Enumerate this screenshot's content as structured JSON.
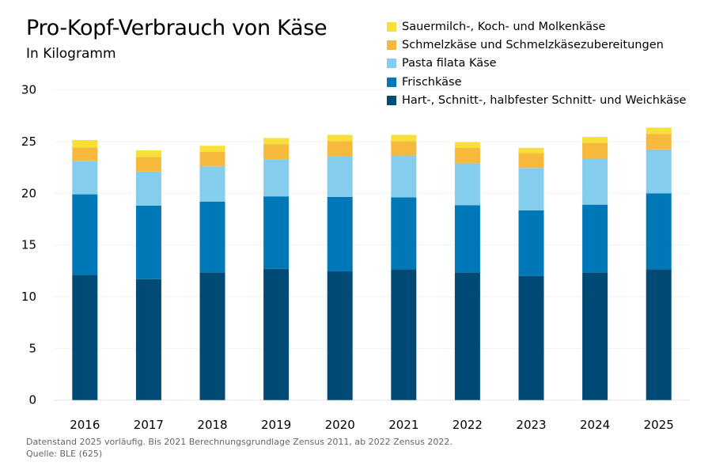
{
  "chart_data": {
    "type": "bar",
    "stacked": true,
    "title": "Pro-Kopf-Verbrauch von Käse",
    "subtitle": "In Kilogramm",
    "categories": [
      "2016",
      "2017",
      "2018",
      "2019",
      "2020",
      "2021",
      "2022",
      "2023",
      "2024",
      "2025"
    ],
    "ylim": [
      0,
      30
    ],
    "yticks": [
      0,
      5,
      10,
      15,
      20,
      25,
      30
    ],
    "grid": true,
    "legend_position": "top-right",
    "series": [
      {
        "name": "Hart-, Schnitt-, halbfester Schnitt- und Weichkäse",
        "color": "#004b76",
        "values": [
          12.1,
          11.7,
          12.35,
          12.7,
          12.45,
          12.65,
          12.35,
          12.0,
          12.35,
          12.65
        ]
      },
      {
        "name": "Frischkäse",
        "color": "#0077b6",
        "values": [
          7.8,
          7.1,
          6.85,
          7.0,
          7.2,
          6.95,
          6.5,
          6.35,
          6.55,
          7.35
        ]
      },
      {
        "name": "Pasta filata Käse",
        "color": "#84cdec",
        "values": [
          3.2,
          3.3,
          3.4,
          3.6,
          3.9,
          4.05,
          4.05,
          4.1,
          4.45,
          4.25
        ]
      },
      {
        "name": "Schmelzkäse und Schmelzkäsezubereitungen",
        "color": "#f6b93b",
        "values": [
          1.35,
          1.4,
          1.4,
          1.45,
          1.5,
          1.4,
          1.5,
          1.45,
          1.55,
          1.5
        ]
      },
      {
        "name": "Sauermilch-, Koch- und Molkenkäse",
        "color": "#f8e038",
        "values": [
          0.7,
          0.65,
          0.6,
          0.6,
          0.6,
          0.6,
          0.55,
          0.5,
          0.55,
          0.6
        ]
      }
    ],
    "footnote": "Datenstand 2025 vorläufig. Bis 2021 Berechnungsgrundlage Zensus 2011, ab 2022 Zensus 2022.",
    "source": "Quelle: BLE (625)"
  }
}
